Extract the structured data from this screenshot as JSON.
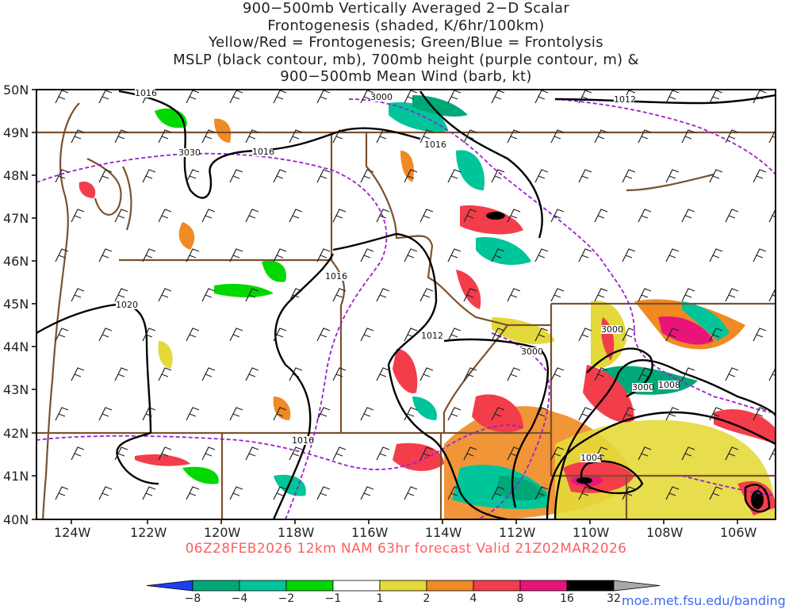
{
  "title": {
    "lines": [
      "900−500mb Vertically Averaged 2−D Scalar",
      "Frontogenesis (shaded, K/6hr/100km)",
      "Yellow/Red = Frontogenesis;  Green/Blue = Frontolysis",
      "MSLP (black contour, mb), 700mb height (purple contour, m) &",
      "900−500mb Mean Wind (barb, kt)"
    ]
  },
  "footer": {
    "forecast_text": "06Z28FEB2026 12km NAM 63hr forecast Valid 21Z02MAR2026",
    "site": "moe.met.fsu.edu/banding"
  },
  "map": {
    "lat_labels": [
      "50N",
      "49N",
      "48N",
      "47N",
      "46N",
      "45N",
      "44N",
      "43N",
      "42N",
      "41N",
      "40N"
    ],
    "lon_labels": [
      "124W",
      "122W",
      "120W",
      "118W",
      "116W",
      "114W",
      "112W",
      "110W",
      "108W",
      "106W"
    ],
    "mslp_labels": [
      {
        "text": "1016",
        "id": "mslp-1016-nw"
      },
      {
        "text": "1016",
        "id": "mslp-1016-wa"
      },
      {
        "text": "1016",
        "id": "mslp-1016-id"
      },
      {
        "text": "1016",
        "id": "mslp-1016-or"
      },
      {
        "text": "1016",
        "id": "mslp-1016-nv"
      },
      {
        "text": "1012",
        "id": "mslp-1012-mt"
      },
      {
        "text": "1012",
        "id": "mslp-1012-id"
      },
      {
        "text": "1008",
        "id": "mslp-1008-wy"
      },
      {
        "text": "1004",
        "id": "mslp-1004-ut"
      },
      {
        "text": "1020",
        "id": "mslp-1020-or"
      }
    ],
    "height_labels": [
      {
        "text": "3000",
        "id": "hgt-3000-n"
      },
      {
        "text": "3030",
        "id": "hgt-3030-wa"
      },
      {
        "text": "3000",
        "id": "hgt-3000-wy"
      },
      {
        "text": "3000",
        "id": "hgt-3000-id"
      },
      {
        "text": "3000",
        "id": "hgt-3000-co"
      }
    ]
  },
  "colorbar": {
    "labels": [
      "−8",
      "−4",
      "−2",
      "−1",
      "1",
      "2",
      "4",
      "8",
      "16",
      "32"
    ],
    "colors": [
      "#1c3ff0",
      "#00a878",
      "#00c59a",
      "#00d800",
      "#ffffff",
      "#e4d93a",
      "#f08a23",
      "#f33d4b",
      "#e8147a",
      "#000000",
      "#a8a8a8"
    ]
  }
}
